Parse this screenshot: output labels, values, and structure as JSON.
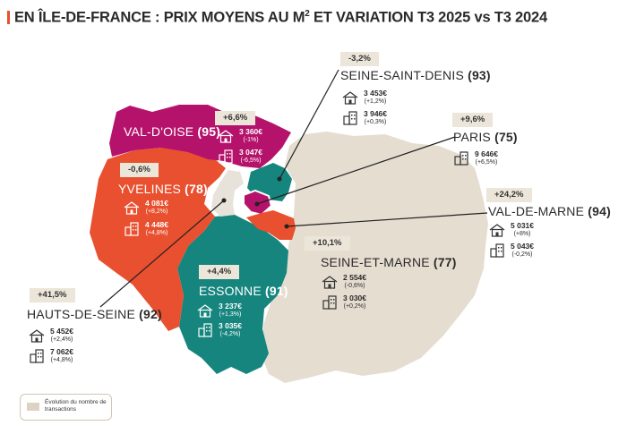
{
  "title": "EN ÎLE-DE-FRANCE : PRIX MOYENS AU M² ET VARIATION T3 2025 vs T3 2024",
  "title_parts": {
    "before": "EN ÎLE-DE-FRANCE : PRIX MOYENS AU M",
    "sup": "2",
    "after": " ET VARIATION T3 2025 vs T3 2024"
  },
  "colors": {
    "accent": "#e8502f",
    "val_doise": "#b5136b",
    "yvelines": "#e8502f",
    "essonne": "#16857e",
    "seine_saint_denis": "#16857e",
    "seine_et_marne": "#e5ddd0",
    "badge_bg": "#ece5d9"
  },
  "departments": {
    "seine_saint_denis": {
      "name": "SEINE-SAINT-DENIS",
      "code": "(93)",
      "variation": "-3,2%",
      "house_price": "3 453€",
      "house_change": "(+1,2%)",
      "apt_price": "3 946€",
      "apt_change": "(+0,3%)"
    },
    "val_doise": {
      "name": "VAL-D'OISE",
      "code": "(95)",
      "variation": "+6,6%",
      "house_price": "3 360€",
      "house_change": "(-1%)",
      "apt_price": "3 047€",
      "apt_change": "(-6,5%)"
    },
    "paris": {
      "name": "PARIS",
      "code": "(75)",
      "variation": "+9,6%",
      "apt_price": "9 646€",
      "apt_change": "(+6,5%)"
    },
    "yvelines": {
      "name": "YVELINES",
      "code": "(78)",
      "variation": "-0,6%",
      "house_price": "4 081€",
      "house_change": "(+8,2%)",
      "apt_price": "4 448€",
      "apt_change": "(+4,8%)"
    },
    "val_de_marne": {
      "name": "VAL-DE-MARNE",
      "code": "(94)",
      "variation": "+24,2%",
      "house_price": "5 031€",
      "house_change": "(+8%)",
      "apt_price": "5 043€",
      "apt_change": "(-0,2%)"
    },
    "seine_et_marne": {
      "name": "SEINE-ET-MARNE",
      "code": "(77)",
      "variation": "+10,1%",
      "house_price": "2 554€",
      "house_change": "(-0,6%)",
      "apt_price": "3 030€",
      "apt_change": "(+0,2%)"
    },
    "essonne": {
      "name": "ESSONNE",
      "code": "(91)",
      "variation": "+4,4%",
      "house_price": "3 237€",
      "house_change": "(+1,3%)",
      "apt_price": "3 035€",
      "apt_change": "(-4,2%)"
    },
    "hauts_de_seine": {
      "name": "HAUTS-DE-SEINE",
      "code": "(92)",
      "variation": "+41,5%",
      "house_price": "5 452€",
      "house_change": "(+2,4%)",
      "apt_price": "7 062€",
      "apt_change": "(+4,8%)"
    }
  },
  "legend": {
    "label": "Évolution du nombre de transactions"
  },
  "icons": {
    "house": "house-icon",
    "apartment": "apartment-building-icon"
  }
}
